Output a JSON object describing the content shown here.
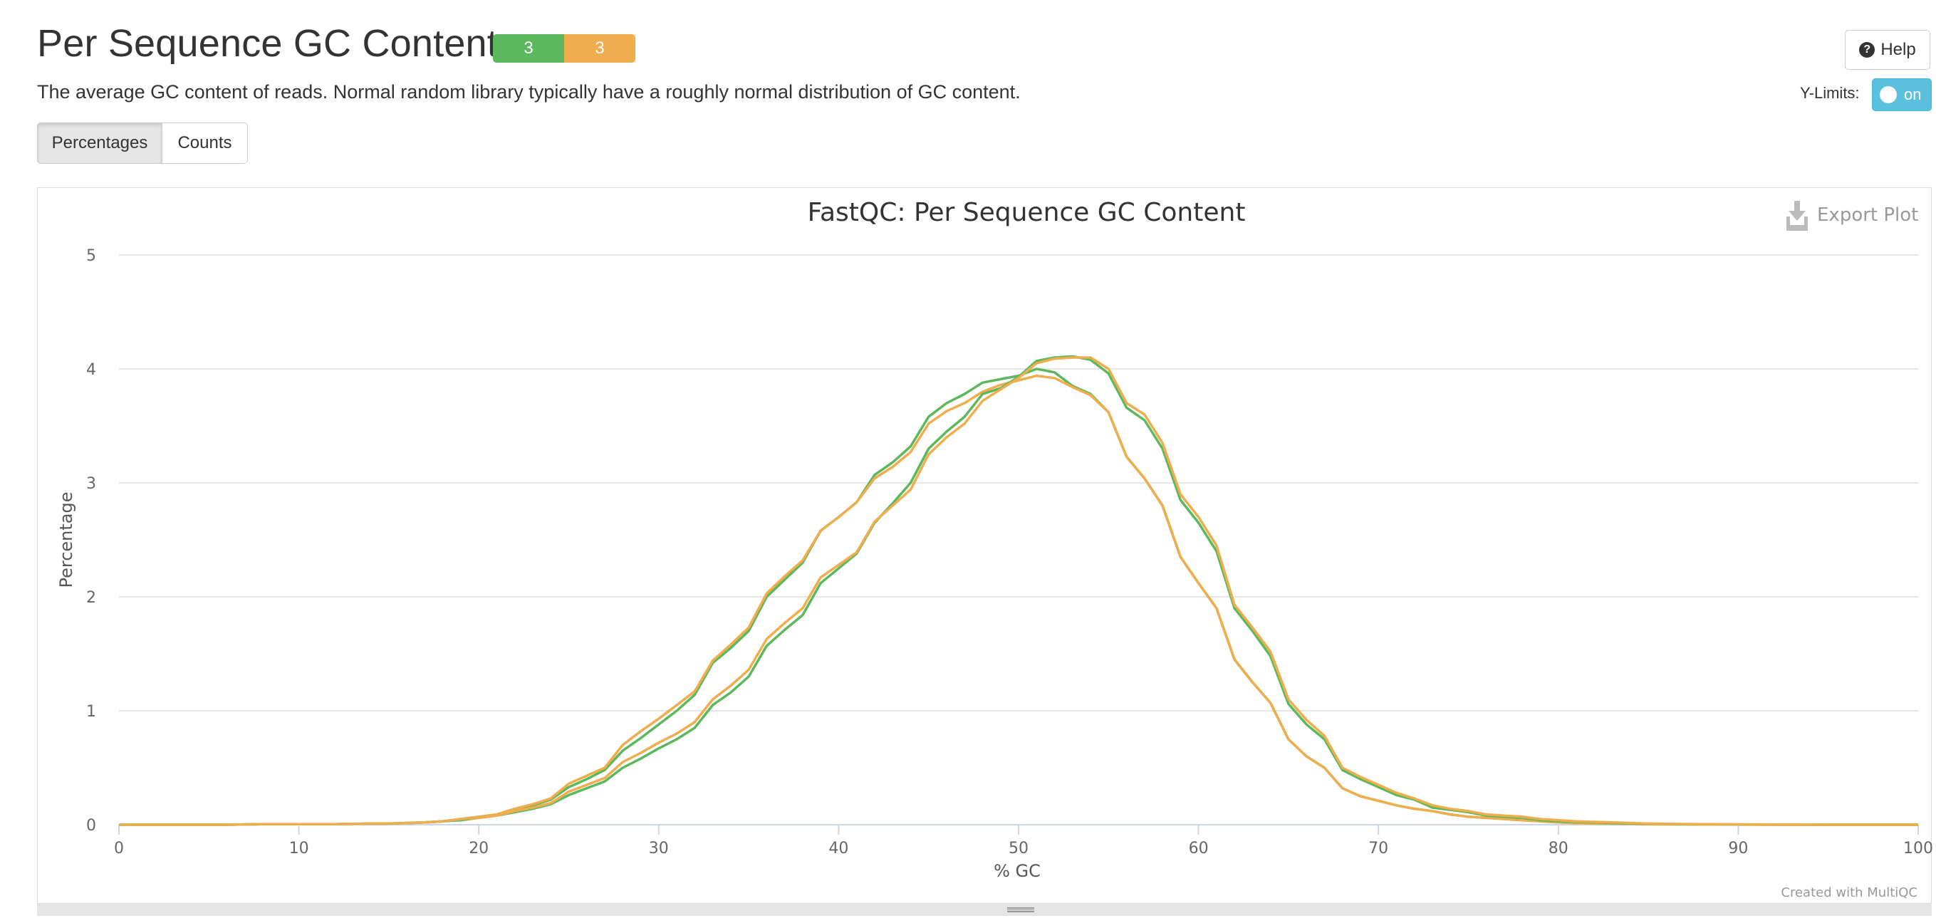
{
  "header": {
    "title": "Per Sequence GC Content",
    "status_pass": "3",
    "status_warn": "3",
    "help_label": "Help",
    "description": "The average GC content of reads. Normal random library typically have a roughly normal distribution of GC content.",
    "ylimits_label": "Y-Limits:",
    "ylimits_toggle": "on"
  },
  "buttons": {
    "percentages": "Percentages",
    "counts": "Counts"
  },
  "plot": {
    "export_label": "Export Plot",
    "credit": "Created with MultiQC"
  },
  "colors": {
    "pass": "#5cb85c",
    "warn": "#f0ad4e",
    "toggle": "#5bc0de"
  },
  "chart_data": {
    "type": "line",
    "title": "FastQC: Per Sequence GC Content",
    "xlabel": "% GC",
    "ylabel": "Percentage",
    "xlim": [
      0,
      100
    ],
    "ylim": [
      0,
      5
    ],
    "xticks": [
      0,
      10,
      20,
      30,
      40,
      50,
      60,
      70,
      80,
      90,
      100
    ],
    "yticks": [
      0,
      1,
      2,
      3,
      4,
      5
    ],
    "grid": true,
    "legend": "none",
    "x": [
      0,
      2,
      4,
      6,
      8,
      10,
      12,
      14,
      15,
      16,
      17,
      18,
      19,
      20,
      21,
      22,
      23,
      24,
      25,
      26,
      27,
      28,
      29,
      30,
      31,
      32,
      33,
      34,
      35,
      36,
      37,
      38,
      39,
      40,
      41,
      42,
      43,
      44,
      45,
      46,
      47,
      48,
      49,
      50,
      51,
      52,
      53,
      54,
      55,
      56,
      57,
      58,
      59,
      60,
      61,
      62,
      63,
      64,
      65,
      66,
      67,
      68,
      69,
      70,
      71,
      72,
      73,
      74,
      75,
      76,
      77,
      78,
      79,
      80,
      81,
      82,
      83,
      84,
      85,
      86,
      87,
      88,
      90,
      92,
      95,
      100
    ],
    "series": [
      {
        "color": "#5cb85c",
        "values": [
          0,
          0,
          0,
          0,
          0.005,
          0.005,
          0.005,
          0.01,
          0.01,
          0.015,
          0.02,
          0.03,
          0.05,
          0.07,
          0.09,
          0.13,
          0.17,
          0.22,
          0.33,
          0.4,
          0.48,
          0.65,
          0.76,
          0.88,
          1.0,
          1.14,
          1.42,
          1.55,
          1.7,
          2.0,
          2.15,
          2.3,
          2.58,
          2.7,
          2.83,
          3.07,
          3.18,
          3.32,
          3.58,
          3.7,
          3.78,
          3.88,
          3.91,
          3.94,
          4.0,
          3.97,
          3.85,
          3.78,
          3.62,
          3.23,
          3.04,
          2.8,
          2.35,
          2.12,
          1.9,
          1.45,
          1.25,
          1.07,
          0.75,
          0.6,
          0.5,
          0.32,
          0.25,
          0.21,
          0.17,
          0.14,
          0.12,
          0.09,
          0.07,
          0.06,
          0.05,
          0.04,
          0.03,
          0.02,
          0.015,
          0.01,
          0.01,
          0.008,
          0.005,
          0.004,
          0.003,
          0.002,
          0.001,
          0,
          0,
          0
        ]
      },
      {
        "color": "#f0ad4e",
        "values": [
          0,
          0,
          0,
          0,
          0.005,
          0.005,
          0.005,
          0.01,
          0.01,
          0.015,
          0.02,
          0.03,
          0.05,
          0.07,
          0.09,
          0.14,
          0.18,
          0.23,
          0.36,
          0.43,
          0.5,
          0.7,
          0.82,
          0.93,
          1.05,
          1.17,
          1.44,
          1.58,
          1.73,
          2.03,
          2.18,
          2.32,
          2.58,
          2.7,
          2.83,
          3.04,
          3.14,
          3.27,
          3.52,
          3.63,
          3.7,
          3.8,
          3.86,
          3.9,
          3.94,
          3.92,
          3.84,
          3.77,
          3.62,
          3.23,
          3.04,
          2.8,
          2.35,
          2.12,
          1.9,
          1.45,
          1.25,
          1.07,
          0.75,
          0.6,
          0.5,
          0.32,
          0.25,
          0.21,
          0.17,
          0.14,
          0.12,
          0.09,
          0.07,
          0.06,
          0.05,
          0.04,
          0.03,
          0.02,
          0.015,
          0.01,
          0.01,
          0.008,
          0.005,
          0.004,
          0.003,
          0.002,
          0.001,
          0,
          0,
          0
        ]
      },
      {
        "color": "#5cb85c",
        "values": [
          0,
          0,
          0,
          0,
          0.005,
          0.005,
          0.005,
          0.01,
          0.01,
          0.015,
          0.02,
          0.03,
          0.04,
          0.06,
          0.08,
          0.11,
          0.14,
          0.18,
          0.26,
          0.32,
          0.38,
          0.5,
          0.58,
          0.67,
          0.75,
          0.85,
          1.05,
          1.16,
          1.3,
          1.57,
          1.71,
          1.84,
          2.12,
          2.25,
          2.38,
          2.65,
          2.82,
          3.0,
          3.3,
          3.45,
          3.58,
          3.78,
          3.83,
          3.93,
          4.07,
          4.1,
          4.11,
          4.08,
          3.96,
          3.66,
          3.55,
          3.3,
          2.85,
          2.65,
          2.4,
          1.9,
          1.7,
          1.48,
          1.06,
          0.88,
          0.75,
          0.48,
          0.4,
          0.33,
          0.26,
          0.22,
          0.15,
          0.13,
          0.11,
          0.08,
          0.07,
          0.06,
          0.04,
          0.03,
          0.025,
          0.02,
          0.015,
          0.01,
          0.008,
          0.006,
          0.005,
          0.004,
          0.002,
          0.001,
          0,
          0
        ]
      },
      {
        "color": "#f0ad4e",
        "values": [
          0,
          0,
          0,
          0,
          0.005,
          0.005,
          0.005,
          0.01,
          0.01,
          0.015,
          0.02,
          0.03,
          0.05,
          0.06,
          0.08,
          0.12,
          0.15,
          0.19,
          0.29,
          0.35,
          0.41,
          0.55,
          0.63,
          0.72,
          0.8,
          0.9,
          1.1,
          1.22,
          1.36,
          1.63,
          1.77,
          1.9,
          2.17,
          2.28,
          2.39,
          2.66,
          2.8,
          2.94,
          3.25,
          3.4,
          3.52,
          3.72,
          3.82,
          3.92,
          4.05,
          4.09,
          4.1,
          4.1,
          4.0,
          3.7,
          3.6,
          3.35,
          2.9,
          2.7,
          2.45,
          1.93,
          1.73,
          1.52,
          1.1,
          0.92,
          0.78,
          0.5,
          0.42,
          0.35,
          0.28,
          0.23,
          0.17,
          0.14,
          0.12,
          0.09,
          0.08,
          0.07,
          0.05,
          0.04,
          0.03,
          0.025,
          0.02,
          0.015,
          0.01,
          0.008,
          0.006,
          0.005,
          0.003,
          0.002,
          0,
          0
        ]
      }
    ]
  }
}
